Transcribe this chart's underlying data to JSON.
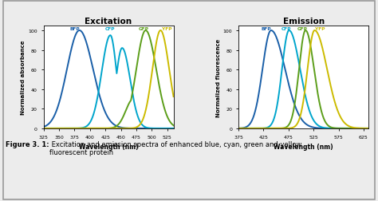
{
  "excitation_title": "Excitation",
  "emission_title": "Emission",
  "excitation_xlabel": "Wavelength (nm)",
  "emission_xlabel": "Wavelength (nm)",
  "excitation_ylabel": "Normalized absorbance",
  "emission_ylabel": "Normalized fluorescence",
  "excitation_xlim": [
    325,
    535
  ],
  "emission_xlim": [
    375,
    635
  ],
  "ylim": [
    0,
    105
  ],
  "yticks": [
    0,
    20,
    40,
    60,
    80,
    100
  ],
  "excitation_xticks": [
    325,
    350,
    375,
    400,
    425,
    450,
    475,
    500,
    525
  ],
  "emission_xticks": [
    375,
    425,
    475,
    525,
    575,
    625
  ],
  "colors": {
    "BFP": "#1a5fa8",
    "CFP": "#00a5cc",
    "GFP": "#5c9e1a",
    "YFP": "#ccbb00"
  },
  "caption_bold": "Figure 3. 1:",
  "caption_normal": " Excitation and emission spectra of enhanced blue, cyan, green and yellow\nfluorescent protein",
  "background_color": "#ececec",
  "border_color": "#999999"
}
